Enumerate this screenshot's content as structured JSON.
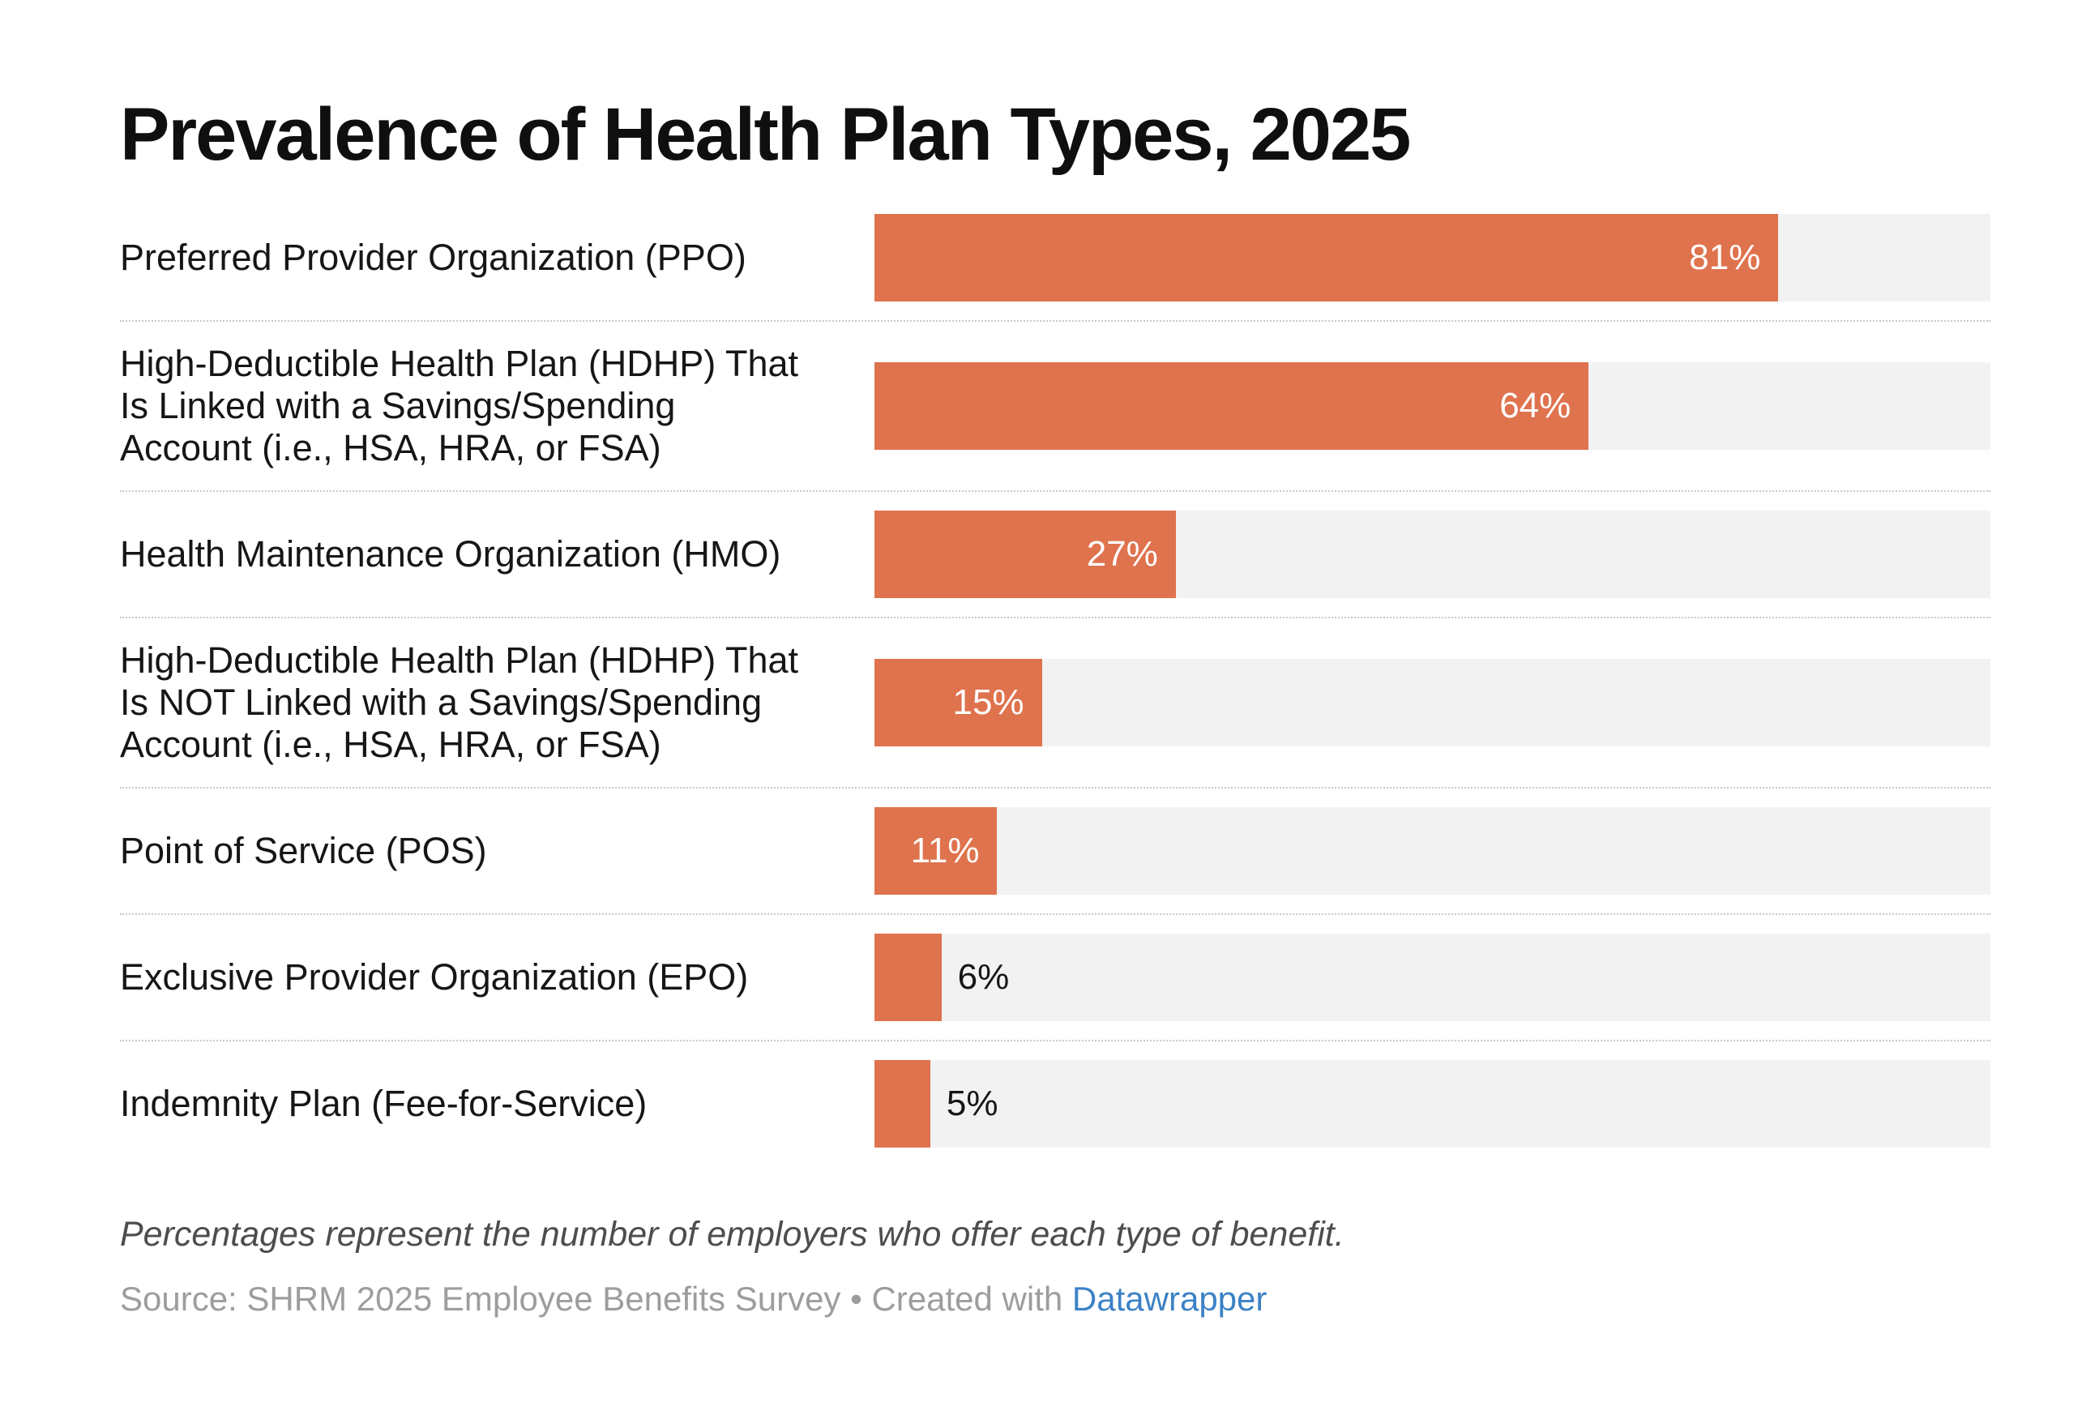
{
  "title": "Prevalence of Health Plan Types, 2025",
  "chart_data": {
    "type": "bar",
    "orientation": "horizontal",
    "title": "Prevalence of Health Plan Types, 2025",
    "categories": [
      "Preferred Provider Organization (PPO)",
      "High-Deductible Health Plan (HDHP) That Is Linked with a Savings/Spending Account (i.e., HSA, HRA, or FSA)",
      "Health Maintenance Organization (HMO)",
      "High-Deductible Health Plan (HDHP) That Is NOT Linked with a Savings/Spending Account (i.e., HSA, HRA, or FSA)",
      "Point of Service (POS)",
      "Exclusive Provider Organization (EPO)",
      "Indemnity Plan (Fee-for-Service)"
    ],
    "values": [
      81,
      64,
      27,
      15,
      11,
      6,
      5
    ],
    "unit": "%",
    "xlim": [
      0,
      100
    ],
    "grid": false,
    "legend_position": "none",
    "colors": {
      "bar": "#DF734E",
      "track": "#F2F2F2"
    }
  },
  "rows": [
    {
      "label": "Preferred Provider Organization (PPO)",
      "value": 81,
      "value_label": "81%",
      "value_placement": "inside"
    },
    {
      "label": "High-Deductible Health Plan (HDHP) That\nIs Linked with a Savings/Spending\nAccount (i.e., HSA, HRA, or FSA)",
      "value": 64,
      "value_label": "64%",
      "value_placement": "inside"
    },
    {
      "label": "Health Maintenance Organization (HMO)",
      "value": 27,
      "value_label": "27%",
      "value_placement": "inside"
    },
    {
      "label": "High-Deductible Health Plan (HDHP) That\nIs NOT Linked with a Savings/Spending\nAccount (i.e., HSA, HRA, or FSA)",
      "value": 15,
      "value_label": "15%",
      "value_placement": "inside"
    },
    {
      "label": "Point of Service (POS)",
      "value": 11,
      "value_label": "11%",
      "value_placement": "inside"
    },
    {
      "label": "Exclusive Provider Organization (EPO)",
      "value": 6,
      "value_label": "6%",
      "value_placement": "outside"
    },
    {
      "label": "Indemnity Plan (Fee-for-Service)",
      "value": 5,
      "value_label": "5%",
      "value_placement": "outside"
    }
  ],
  "footer": {
    "note": "Percentages represent the number of employers who offer each type of benefit.",
    "source_text": "Source: SHRM 2025 Employee Benefits Survey • Created with ",
    "source_link": "Datawrapper"
  }
}
